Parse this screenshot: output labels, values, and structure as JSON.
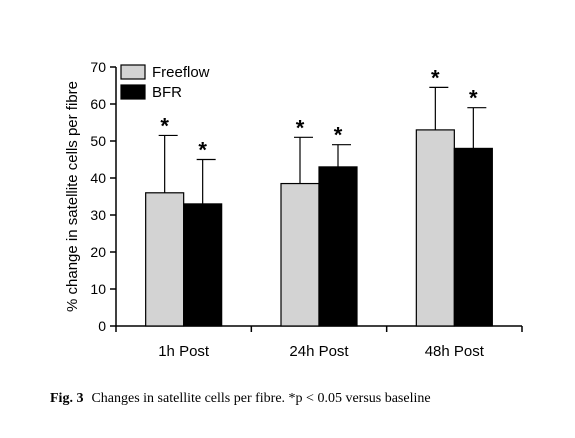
{
  "figure_caption": {
    "label": "Fig. 3",
    "text": "Changes in satellite cells per fibre. *p < 0.05 versus baseline"
  },
  "chart_data": {
    "type": "bar",
    "title": "",
    "xlabel": "",
    "ylabel": "% change in satellite cells per fibre",
    "ylim": [
      0,
      70
    ],
    "yticks": [
      0,
      10,
      20,
      30,
      40,
      50,
      60,
      70
    ],
    "categories": [
      "1h Post",
      "24h Post",
      "48h Post"
    ],
    "series": [
      {
        "name": "Freeflow",
        "color": "#d3d3d3",
        "values": [
          36,
          38.5,
          53
        ],
        "error": [
          15.5,
          12.5,
          11.5
        ],
        "significance": [
          "*",
          "*",
          "*"
        ]
      },
      {
        "name": "BFR",
        "color": "#000000",
        "values": [
          33,
          43,
          48
        ],
        "error": [
          12,
          6,
          11
        ],
        "significance": [
          "*",
          "*",
          "*"
        ]
      }
    ],
    "legend": {
      "position": "top-left"
    },
    "grid": false
  }
}
